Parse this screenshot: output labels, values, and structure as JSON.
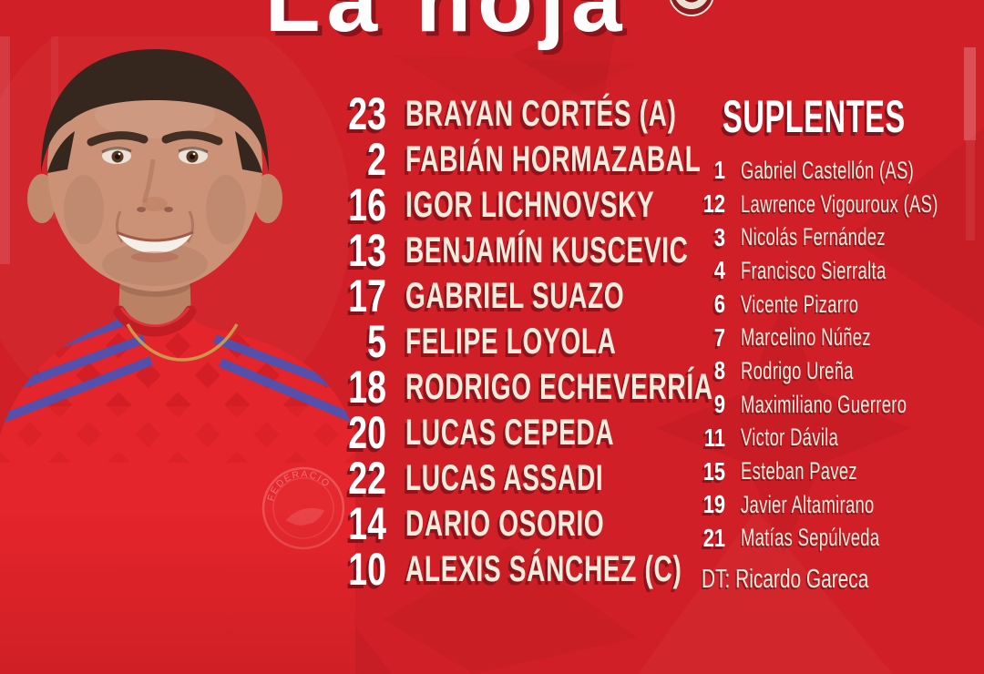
{
  "title": "La hoja",
  "colors": {
    "background": "#d01f26",
    "text_white": "#ffffff",
    "text_cream": "#f3ecdd",
    "text_shadow": "#83131a",
    "jersey_red": "#e4252b",
    "jersey_stripes_blue": "#4c53b4"
  },
  "starting_xi": [
    {
      "number": "23",
      "name": "BRAYAN CORTÉS (A)"
    },
    {
      "number": "2",
      "name": "FABIÁN HORMAZABAL"
    },
    {
      "number": "16",
      "name": "IGOR LICHNOVSKY"
    },
    {
      "number": "13",
      "name": "BENJAMÍN KUSCEVIC"
    },
    {
      "number": "17",
      "name": "GABRIEL SUAZO"
    },
    {
      "number": "5",
      "name": "FELIPE LOYOLA"
    },
    {
      "number": "18",
      "name": "RODRIGO ECHEVERRÍA"
    },
    {
      "number": "20",
      "name": "LUCAS CEPEDA"
    },
    {
      "number": "22",
      "name": "LUCAS ASSADI"
    },
    {
      "number": "14",
      "name": "DARIO OSORIO"
    },
    {
      "number": "10",
      "name": "ALEXIS SÁNCHEZ (C)"
    }
  ],
  "substitutes": {
    "header": "SUPLENTES",
    "players": [
      {
        "number": "1",
        "name": "Gabriel Castellón (AS)"
      },
      {
        "number": "12",
        "name": "Lawrence Vigouroux (AS)"
      },
      {
        "number": "3",
        "name": "Nicolás Fernández"
      },
      {
        "number": "4",
        "name": "Francisco Sierralta"
      },
      {
        "number": "6",
        "name": "Vicente Pizarro"
      },
      {
        "number": "7",
        "name": "Marcelino Núñez"
      },
      {
        "number": "8",
        "name": "Rodrigo Ureña"
      },
      {
        "number": "9",
        "name": "Maximiliano Guerrero"
      },
      {
        "number": "11",
        "name": "Victor Dávila"
      },
      {
        "number": "15",
        "name": "Esteban Pavez"
      },
      {
        "number": "19",
        "name": "Javier Altamirano"
      },
      {
        "number": "21",
        "name": "Matías Sepúlveda"
      }
    ]
  },
  "coach": "DT: Ricardo Gareca",
  "jersey": {
    "crest_text": "FEDERACION DE"
  },
  "icons": {
    "team_badge": "team-badge (partially visible circular crest)",
    "jersey_crest": "federation-crest watermark on shirt"
  }
}
